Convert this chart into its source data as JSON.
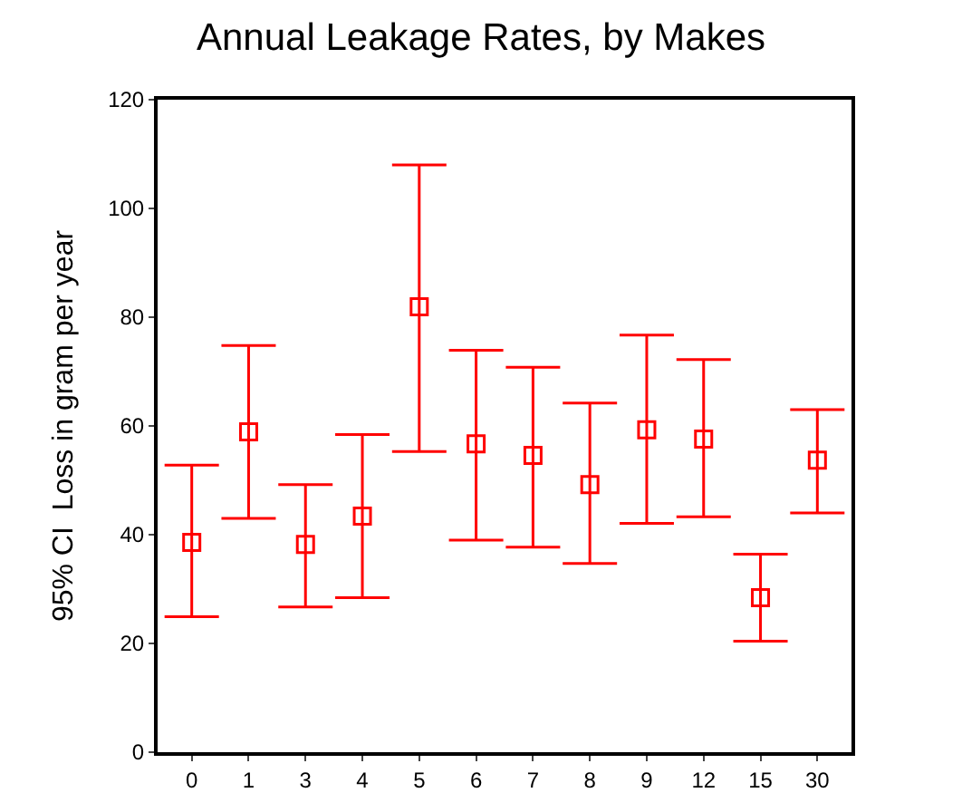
{
  "chart_data": {
    "type": "scatter",
    "title": "Annual Leakage Rates, by Makes",
    "ylabel": "95% CI  Loss in gram per year",
    "categories": [
      "0",
      "1",
      "3",
      "4",
      "5",
      "6",
      "7",
      "8",
      "9",
      "12",
      "15",
      "30"
    ],
    "series": [
      {
        "color": "#ff0000",
        "values": [
          38.6,
          58.9,
          38.2,
          43.4,
          81.9,
          56.7,
          54.6,
          49.2,
          59.3,
          57.6,
          28.4,
          53.7
        ],
        "errors": [
          [
            24.9,
            52.8
          ],
          [
            43.0,
            74.8
          ],
          [
            26.7,
            49.2
          ],
          [
            28.4,
            58.4
          ],
          [
            55.3,
            108.0
          ],
          [
            39.0,
            73.9
          ],
          [
            37.7,
            70.8
          ],
          [
            34.7,
            64.2
          ],
          [
            42.1,
            76.7
          ],
          [
            43.3,
            72.2
          ],
          [
            20.4,
            36.4
          ],
          [
            44.0,
            63.0
          ]
        ]
      }
    ],
    "ylim": [
      0,
      120
    ],
    "yticks": [
      0,
      20,
      40,
      60,
      80,
      100,
      120
    ],
    "marker": "square"
  }
}
